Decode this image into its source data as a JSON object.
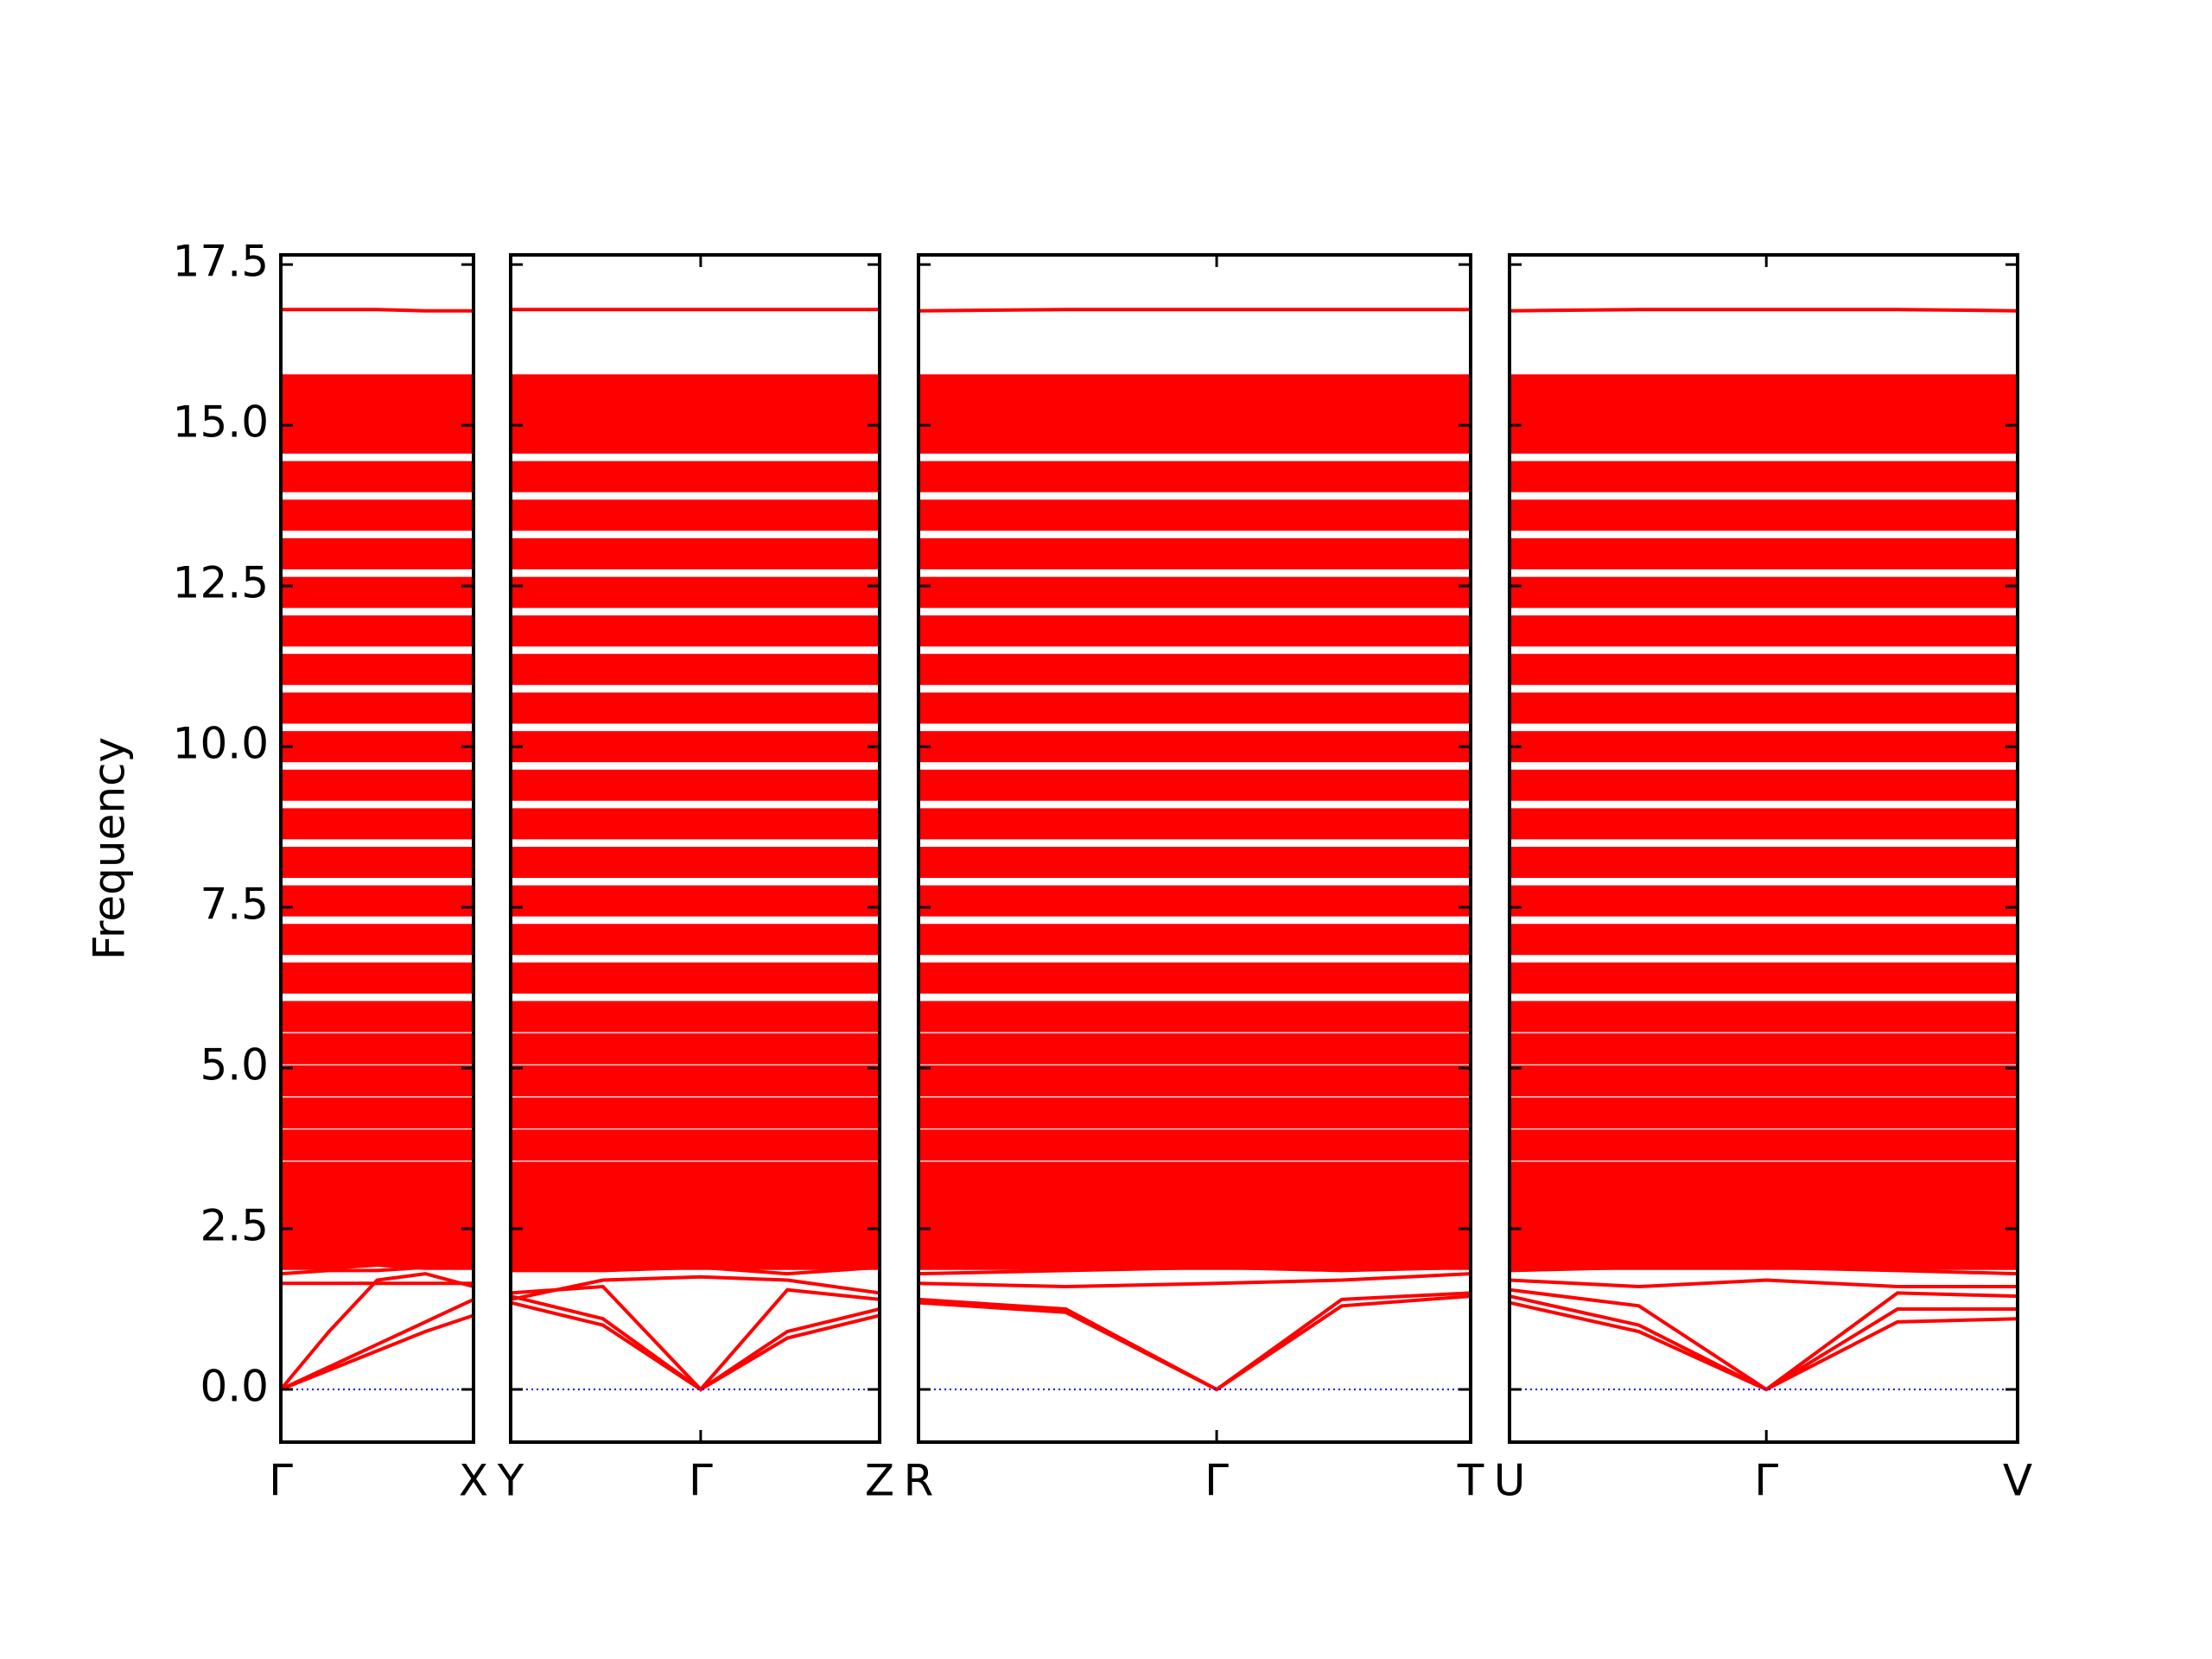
{
  "chart_data": {
    "type": "line",
    "ylabel": "Frequency",
    "color": "#ff0000",
    "zero_line": 0,
    "ylim": [
      -0.82,
      17.65
    ],
    "yticks": [
      {
        "value": 0,
        "label": "0.0"
      },
      {
        "value": 2.5,
        "label": "2.5"
      },
      {
        "value": 5,
        "label": "5.0"
      },
      {
        "value": 7.5,
        "label": "7.5"
      },
      {
        "value": 10,
        "label": "10.0"
      },
      {
        "value": 12.5,
        "label": "12.5"
      },
      {
        "value": 15,
        "label": "15.0"
      },
      {
        "value": 17.5,
        "label": "17.5"
      }
    ],
    "panels": [
      {
        "xlim": [
          0,
          1
        ],
        "xticks": [
          {
            "value": 0,
            "label": "Γ"
          },
          {
            "value": 1,
            "label": "X"
          }
        ],
        "x": [
          0,
          0.25,
          0.5,
          0.75,
          1
        ],
        "series": [
          {
            "values": [
              0,
              0.3,
              0.6,
              0.9,
              1.15
            ]
          },
          {
            "values": [
              0,
              0.35,
              0.7,
              1.05,
              1.4
            ]
          },
          {
            "values": [
              0,
              0.9,
              1.7,
              1.8,
              1.6
            ]
          },
          {
            "values": [
              1.65,
              1.65,
              1.65,
              1.65,
              1.65
            ]
          },
          {
            "values": [
              1.8,
              1.85,
              1.85,
              1.9,
              1.95
            ]
          },
          {
            "values": [
              16.8,
              16.8,
              16.8,
              16.78,
              16.78
            ]
          }
        ],
        "bands": [
          [
            2.1,
            2.1,
            2.15,
            2.1,
            2.1
          ],
          [
            2.5,
            2.5,
            2.5,
            2.55,
            2.5
          ],
          [
            2.9,
            2.9,
            2.9,
            2.9,
            2.9
          ],
          [
            3.3,
            3.3,
            3.3,
            3.3,
            3.3
          ],
          [
            3.8,
            3.8,
            3.8,
            3.8,
            3.8
          ],
          [
            4.3,
            4.3,
            4.3,
            4.3,
            4.3
          ],
          [
            4.8,
            4.8,
            4.8,
            4.8,
            4.8
          ],
          [
            5.3,
            5.3,
            5.3,
            5.3,
            5.3
          ],
          [
            5.8,
            5.8,
            5.8,
            5.8,
            5.8
          ],
          [
            6.4,
            6.4,
            6.4,
            6.4,
            6.4
          ],
          [
            7.0,
            7.0,
            7.0,
            7.0,
            7.0
          ],
          [
            7.6,
            7.6,
            7.6,
            7.6,
            7.6
          ],
          [
            8.2,
            8.2,
            8.2,
            8.2,
            8.2
          ],
          [
            8.8,
            8.8,
            8.8,
            8.8,
            8.8
          ],
          [
            9.4,
            9.4,
            9.4,
            9.4,
            9.4
          ],
          [
            10.0,
            10.0,
            10.0,
            10.0,
            10.0
          ],
          [
            10.6,
            10.6,
            10.6,
            10.6,
            10.6
          ],
          [
            11.2,
            11.2,
            11.2,
            11.2,
            11.2
          ],
          [
            11.8,
            11.8,
            11.8,
            11.8,
            11.8
          ],
          [
            12.4,
            12.4,
            12.4,
            12.4,
            12.4
          ],
          [
            13.0,
            13.0,
            13.0,
            13.0,
            13.0
          ],
          [
            13.6,
            13.6,
            13.6,
            13.6,
            13.6
          ],
          [
            14.2,
            14.2,
            14.2,
            14.2,
            14.2
          ],
          [
            14.8,
            14.8,
            14.8,
            14.8,
            14.8
          ],
          [
            15.2,
            15.2,
            15.2,
            15.2,
            15.2
          ],
          [
            15.55,
            15.55,
            15.55,
            15.55,
            15.55
          ]
        ]
      },
      {
        "xlim": [
          0,
          2
        ],
        "xticks": [
          {
            "value": 0,
            "label": "Y"
          },
          {
            "value": 1.03,
            "label": "Γ"
          },
          {
            "value": 2,
            "label": "Z"
          }
        ],
        "x": [
          0,
          0.5,
          1.03,
          1.5,
          2
        ],
        "series": [
          {
            "values": [
              1.35,
              1.0,
              0,
              0.8,
              1.15
            ]
          },
          {
            "values": [
              1.45,
              1.1,
              0,
              0.9,
              1.25
            ]
          },
          {
            "values": [
              1.5,
              1.6,
              0,
              1.55,
              1.4
            ]
          },
          {
            "values": [
              1.4,
              1.7,
              1.75,
              1.7,
              1.5
            ]
          },
          {
            "values": [
              1.85,
              1.85,
              1.9,
              1.8,
              1.9
            ]
          },
          {
            "values": [
              16.8,
              16.8,
              16.8,
              16.8,
              16.8
            ]
          }
        ],
        "bands": [
          [
            2.1,
            2.1,
            2.1,
            2.1,
            2.1
          ],
          [
            2.5,
            2.5,
            2.5,
            2.5,
            2.5
          ],
          [
            2.9,
            2.9,
            2.9,
            2.9,
            2.9
          ],
          [
            3.3,
            3.3,
            3.3,
            3.3,
            3.3
          ],
          [
            3.8,
            3.8,
            3.8,
            3.8,
            3.8
          ],
          [
            4.3,
            4.3,
            4.3,
            4.3,
            4.3
          ],
          [
            4.8,
            4.8,
            4.8,
            4.8,
            4.8
          ],
          [
            5.3,
            5.3,
            5.3,
            5.3,
            5.3
          ],
          [
            5.8,
            5.8,
            5.8,
            5.8,
            5.8
          ],
          [
            6.4,
            6.4,
            6.4,
            6.4,
            6.4
          ],
          [
            7.0,
            7.0,
            7.0,
            7.0,
            7.0
          ],
          [
            7.6,
            7.6,
            7.6,
            7.6,
            7.6
          ],
          [
            8.2,
            8.2,
            8.2,
            8.2,
            8.2
          ],
          [
            8.8,
            8.8,
            8.8,
            8.8,
            8.8
          ],
          [
            9.4,
            9.4,
            9.4,
            9.4,
            9.4
          ],
          [
            10.0,
            10.0,
            10.0,
            10.0,
            10.0
          ],
          [
            10.6,
            10.6,
            10.6,
            10.6,
            10.6
          ],
          [
            11.2,
            11.2,
            11.2,
            11.2,
            11.2
          ],
          [
            11.8,
            11.8,
            11.8,
            11.8,
            11.8
          ],
          [
            12.4,
            12.4,
            12.4,
            12.4,
            12.4
          ],
          [
            13.0,
            13.0,
            13.0,
            13.0,
            13.0
          ],
          [
            13.6,
            13.6,
            13.6,
            13.6,
            13.6
          ],
          [
            14.2,
            14.2,
            14.2,
            14.2,
            14.2
          ],
          [
            14.8,
            14.8,
            14.8,
            14.8,
            14.8
          ],
          [
            15.2,
            15.2,
            15.2,
            15.2,
            15.2
          ],
          [
            15.55,
            15.55,
            15.55,
            15.55,
            15.55
          ]
        ]
      },
      {
        "xlim": [
          0,
          3
        ],
        "xticks": [
          {
            "value": 0,
            "label": "R"
          },
          {
            "value": 1.62,
            "label": "Γ"
          },
          {
            "value": 3,
            "label": "T"
          }
        ],
        "x": [
          0,
          0.8,
          1.62,
          2.3,
          3
        ],
        "series": [
          {
            "values": [
              1.35,
              1.2,
              0,
              1.3,
              1.45
            ]
          },
          {
            "values": [
              1.4,
              1.25,
              0,
              1.4,
              1.5
            ]
          },
          {
            "values": [
              1.65,
              1.6,
              1.65,
              1.7,
              1.8
            ]
          },
          {
            "values": [
              1.8,
              1.85,
              1.9,
              1.85,
              1.9
            ]
          },
          {
            "values": [
              16.78,
              16.8,
              16.8,
              16.8,
              16.8
            ]
          }
        ],
        "bands": [
          [
            2.1,
            2.1,
            2.1,
            2.1,
            2.1
          ],
          [
            2.5,
            2.5,
            2.5,
            2.5,
            2.5
          ],
          [
            2.9,
            2.9,
            2.9,
            2.9,
            2.9
          ],
          [
            3.3,
            3.3,
            3.3,
            3.3,
            3.3
          ],
          [
            3.8,
            3.8,
            3.8,
            3.8,
            3.8
          ],
          [
            4.3,
            4.3,
            4.3,
            4.3,
            4.3
          ],
          [
            4.8,
            4.8,
            4.8,
            4.8,
            4.8
          ],
          [
            5.3,
            5.3,
            5.3,
            5.3,
            5.3
          ],
          [
            5.8,
            5.8,
            5.8,
            5.8,
            5.8
          ],
          [
            6.4,
            6.4,
            6.4,
            6.4,
            6.4
          ],
          [
            7.0,
            7.0,
            7.0,
            7.0,
            7.0
          ],
          [
            7.6,
            7.6,
            7.6,
            7.6,
            7.6
          ],
          [
            8.2,
            8.2,
            8.2,
            8.2,
            8.2
          ],
          [
            8.8,
            8.8,
            8.8,
            8.8,
            8.8
          ],
          [
            9.4,
            9.4,
            9.4,
            9.4,
            9.4
          ],
          [
            10.0,
            10.0,
            10.0,
            10.0,
            10.0
          ],
          [
            10.6,
            10.6,
            10.6,
            10.6,
            10.6
          ],
          [
            11.2,
            11.2,
            11.2,
            11.2,
            11.2
          ],
          [
            11.8,
            11.8,
            11.8,
            11.8,
            11.8
          ],
          [
            12.4,
            12.4,
            12.4,
            12.4,
            12.4
          ],
          [
            13.0,
            13.0,
            13.0,
            13.0,
            13.0
          ],
          [
            13.6,
            13.6,
            13.6,
            13.6,
            13.6
          ],
          [
            14.2,
            14.2,
            14.2,
            14.2,
            14.2
          ],
          [
            14.8,
            14.8,
            14.8,
            14.8,
            14.8
          ],
          [
            15.2,
            15.2,
            15.2,
            15.2,
            15.2
          ],
          [
            15.55,
            15.55,
            15.55,
            15.55,
            15.55
          ]
        ]
      },
      {
        "xlim": [
          0,
          2.75
        ],
        "xticks": [
          {
            "value": 0,
            "label": "U"
          },
          {
            "value": 1.39,
            "label": "Γ"
          },
          {
            "value": 2.75,
            "label": "V"
          }
        ],
        "x": [
          0,
          0.7,
          1.39,
          2.1,
          2.75
        ],
        "series": [
          {
            "values": [
              1.35,
              0.9,
              0,
              1.05,
              1.1
            ]
          },
          {
            "values": [
              1.45,
              1.0,
              0,
              1.25,
              1.25
            ]
          },
          {
            "values": [
              1.55,
              1.3,
              0,
              1.5,
              1.45
            ]
          },
          {
            "values": [
              1.7,
              1.6,
              1.7,
              1.6,
              1.6
            ]
          },
          {
            "values": [
              1.85,
              1.9,
              1.9,
              1.85,
              1.8
            ]
          },
          {
            "values": [
              16.78,
              16.8,
              16.8,
              16.8,
              16.78
            ]
          }
        ],
        "bands": [
          [
            2.1,
            2.1,
            2.1,
            2.1,
            2.1
          ],
          [
            2.5,
            2.5,
            2.5,
            2.5,
            2.5
          ],
          [
            2.9,
            2.9,
            2.9,
            2.9,
            2.9
          ],
          [
            3.3,
            3.3,
            3.3,
            3.3,
            3.3
          ],
          [
            3.8,
            3.8,
            3.8,
            3.8,
            3.8
          ],
          [
            4.3,
            4.3,
            4.3,
            4.3,
            4.3
          ],
          [
            4.8,
            4.8,
            4.8,
            4.8,
            4.8
          ],
          [
            5.3,
            5.3,
            5.3,
            5.3,
            5.3
          ],
          [
            5.8,
            5.8,
            5.8,
            5.8,
            5.8
          ],
          [
            6.4,
            6.4,
            6.4,
            6.4,
            6.4
          ],
          [
            7.0,
            7.0,
            7.0,
            7.0,
            7.0
          ],
          [
            7.6,
            7.6,
            7.6,
            7.6,
            7.6
          ],
          [
            8.2,
            8.2,
            8.2,
            8.2,
            8.2
          ],
          [
            8.8,
            8.8,
            8.8,
            8.8,
            8.8
          ],
          [
            9.4,
            9.4,
            9.4,
            9.4,
            9.4
          ],
          [
            10.0,
            10.0,
            10.0,
            10.0,
            10.0
          ],
          [
            10.6,
            10.6,
            10.6,
            10.6,
            10.6
          ],
          [
            11.2,
            11.2,
            11.2,
            11.2,
            11.2
          ],
          [
            11.8,
            11.8,
            11.8,
            11.8,
            11.8
          ],
          [
            12.4,
            12.4,
            12.4,
            12.4,
            12.4
          ],
          [
            13.0,
            13.0,
            13.0,
            13.0,
            13.0
          ],
          [
            13.6,
            13.6,
            13.6,
            13.6,
            13.6
          ],
          [
            14.2,
            14.2,
            14.2,
            14.2,
            14.2
          ],
          [
            14.8,
            14.8,
            14.8,
            14.8,
            14.8
          ],
          [
            15.2,
            15.2,
            15.2,
            15.2,
            15.2
          ],
          [
            15.55,
            15.55,
            15.55,
            15.55,
            15.55
          ]
        ]
      }
    ]
  }
}
